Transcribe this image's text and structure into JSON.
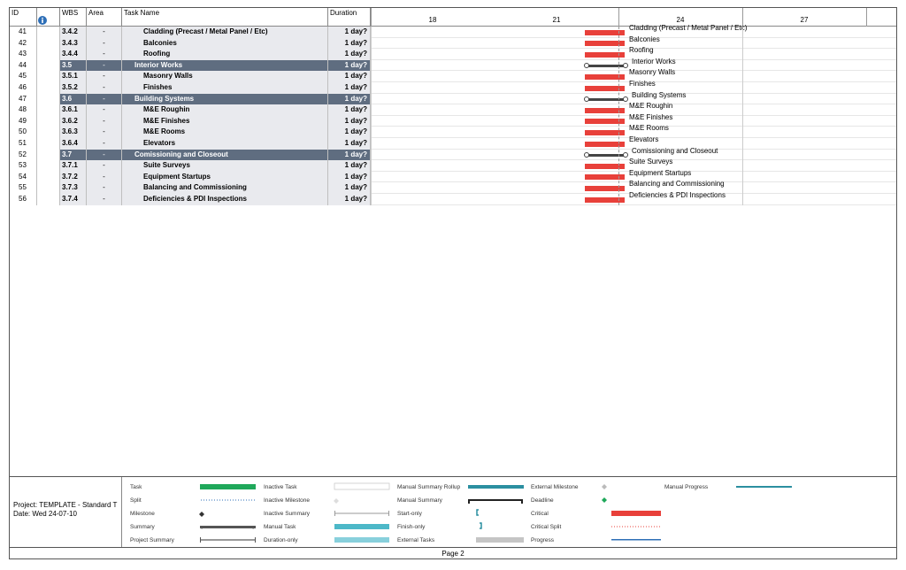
{
  "header": {
    "id": "ID",
    "wbs": "WBS",
    "area": "Area",
    "task_name": "Task Name",
    "duration": "Duration"
  },
  "timescale": [
    "18",
    "21",
    "24",
    "27"
  ],
  "rows": [
    {
      "id": "41",
      "wbs": "3.4.2",
      "area": "-",
      "name": "Cladding (Precast / Metal Panel / Etc)",
      "duration": "1 day?",
      "type": "task",
      "bar_label": "Cladding (Precast / Metal Panel / Etc)"
    },
    {
      "id": "42",
      "wbs": "3.4.3",
      "area": "-",
      "name": "Balconies",
      "duration": "1 day?",
      "type": "task",
      "bar_label": "Balconies"
    },
    {
      "id": "43",
      "wbs": "3.4.4",
      "area": "-",
      "name": "Roofing",
      "duration": "1 day?",
      "type": "task",
      "bar_label": "Roofing"
    },
    {
      "id": "44",
      "wbs": "3.5",
      "area": "-",
      "name": "Interior Works",
      "duration": "1 day?",
      "type": "summary",
      "bar_label": "Interior Works"
    },
    {
      "id": "45",
      "wbs": "3.5.1",
      "area": "-",
      "name": "Masonry Walls",
      "duration": "1 day?",
      "type": "task",
      "bar_label": "Masonry Walls"
    },
    {
      "id": "46",
      "wbs": "3.5.2",
      "area": "-",
      "name": "Finishes",
      "duration": "1 day?",
      "type": "task",
      "bar_label": "Finishes"
    },
    {
      "id": "47",
      "wbs": "3.6",
      "area": "-",
      "name": "Building Systems",
      "duration": "1 day?",
      "type": "summary",
      "bar_label": "Building Systems"
    },
    {
      "id": "48",
      "wbs": "3.6.1",
      "area": "-",
      "name": "M&E Roughin",
      "duration": "1 day?",
      "type": "task",
      "bar_label": "M&E Roughin"
    },
    {
      "id": "49",
      "wbs": "3.6.2",
      "area": "-",
      "name": "M&E Finishes",
      "duration": "1 day?",
      "type": "task",
      "bar_label": "M&E Finishes"
    },
    {
      "id": "50",
      "wbs": "3.6.3",
      "area": "-",
      "name": "M&E Rooms",
      "duration": "1 day?",
      "type": "task",
      "bar_label": "M&E Rooms"
    },
    {
      "id": "51",
      "wbs": "3.6.4",
      "area": "-",
      "name": "Elevators",
      "duration": "1 day?",
      "type": "task",
      "bar_label": "Elevators"
    },
    {
      "id": "52",
      "wbs": "3.7",
      "area": "-",
      "name": "Comissioning and Closeout",
      "duration": "1 day?",
      "type": "summary",
      "bar_label": "Comissioning and Closeout"
    },
    {
      "id": "53",
      "wbs": "3.7.1",
      "area": "-",
      "name": "Suite Surveys",
      "duration": "1 day?",
      "type": "task",
      "bar_label": "Suite Surveys"
    },
    {
      "id": "54",
      "wbs": "3.7.2",
      "area": "-",
      "name": "Equipment Startups",
      "duration": "1 day?",
      "type": "task",
      "bar_label": "Equipment Startups"
    },
    {
      "id": "55",
      "wbs": "3.7.3",
      "area": "-",
      "name": "Balancing and Commissioning",
      "duration": "1 day?",
      "type": "task",
      "bar_label": "Balancing and Commissioning"
    },
    {
      "id": "56",
      "wbs": "3.7.4",
      "area": "-",
      "name": "Deficiencies & PDI Inspections",
      "duration": "1 day?",
      "type": "task",
      "bar_label": "Deficiencies & PDI Inspections"
    }
  ],
  "project_info": {
    "project": "Project: TEMPLATE - Standard T",
    "date": "Date: Wed 24-07-10"
  },
  "legend": {
    "col1": [
      "Task",
      "Split",
      "Milestone",
      "Summary",
      "Project Summary"
    ],
    "col2": [
      "Inactive Task",
      "Inactive Milestone",
      "Inactive Summary",
      "Manual Task",
      "Duration-only"
    ],
    "col3": [
      "Manual Summary Rollup",
      "Manual Summary",
      "Start-only",
      "Finish-only",
      "External Tasks"
    ],
    "col4": [
      "External Milestone",
      "Deadline",
      "Critical",
      "Critical Split",
      "Progress"
    ],
    "col5": [
      "Manual Progress"
    ]
  },
  "colors": {
    "critical": "#e8403a",
    "task": "#1fa85a",
    "summary_row": "#5f6d80",
    "manual": "#4db8c8"
  },
  "footer": {
    "page": "Page 2"
  }
}
